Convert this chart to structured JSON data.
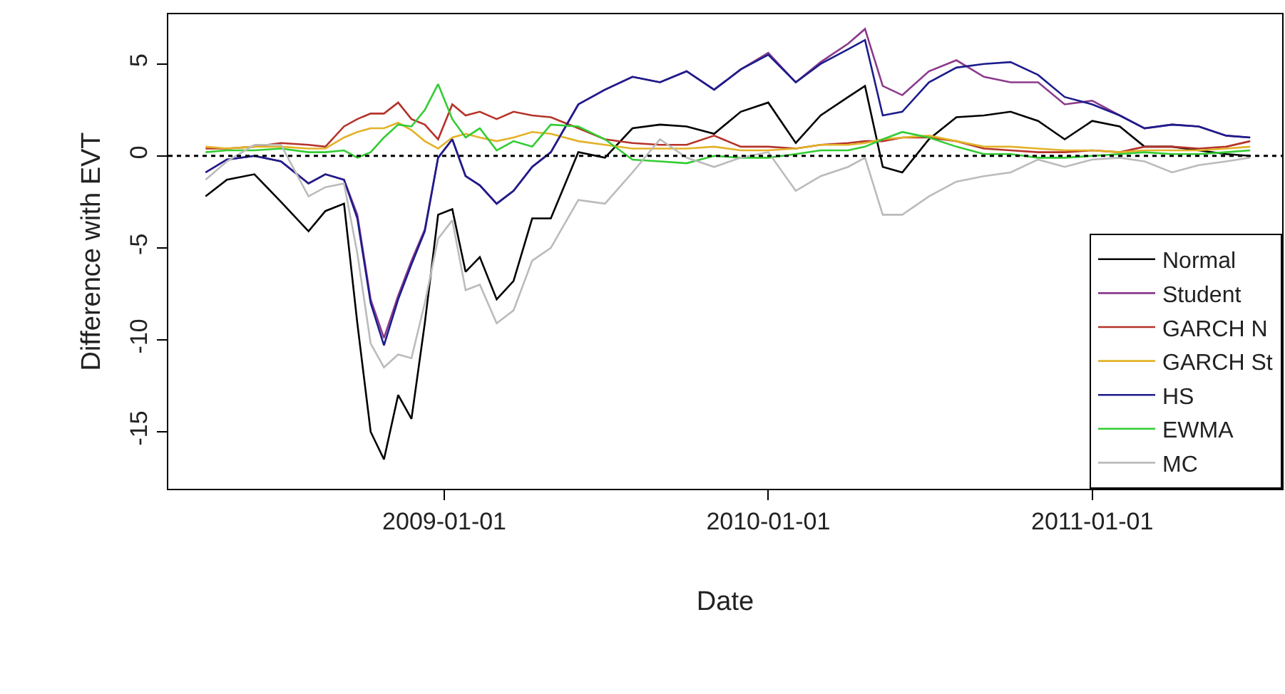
{
  "chart_data": {
    "type": "line",
    "xlabel": "Date",
    "ylabel": "Difference with EVT",
    "x": [
      "2008-04-07",
      "2008-05-01",
      "2008-06-01",
      "2008-07-01",
      "2008-08-01",
      "2008-08-20",
      "2008-09-10",
      "2008-09-25",
      "2008-10-10",
      "2008-10-25",
      "2008-11-10",
      "2008-11-25",
      "2008-12-10",
      "2008-12-25",
      "2009-01-10",
      "2009-01-25",
      "2009-02-10",
      "2009-03-01",
      "2009-03-20",
      "2009-04-10",
      "2009-05-01",
      "2009-06-01",
      "2009-07-01",
      "2009-08-01",
      "2009-09-01",
      "2009-10-01",
      "2009-11-01",
      "2009-12-01",
      "2010-01-01",
      "2010-02-01",
      "2010-03-01",
      "2010-04-01",
      "2010-04-20",
      "2010-05-10",
      "2010-06-01",
      "2010-07-01",
      "2010-08-01",
      "2010-09-01",
      "2010-10-01",
      "2010-11-01",
      "2010-12-01",
      "2011-01-01",
      "2011-02-01",
      "2011-03-01",
      "2011-04-01",
      "2011-05-01",
      "2011-06-01",
      "2011-06-28"
    ],
    "series": [
      {
        "name": "Normal",
        "color": "#000000",
        "values": [
          -2.2,
          -1.3,
          -1.0,
          -2.5,
          -4.1,
          -3.0,
          -2.6,
          -9.1,
          -15.0,
          -16.5,
          -13.0,
          -14.3,
          -9.1,
          -3.2,
          -2.9,
          -6.3,
          -5.5,
          -7.8,
          -6.8,
          -3.4,
          -3.4,
          0.2,
          -0.1,
          1.5,
          1.7,
          1.6,
          1.2,
          2.4,
          2.9,
          0.7,
          2.2,
          3.2,
          3.8,
          -0.6,
          -0.9,
          0.9,
          2.1,
          2.2,
          2.4,
          1.9,
          0.9,
          1.9,
          1.6,
          0.5,
          0.5,
          0.3,
          0.1,
          0.0
        ]
      },
      {
        "name": "Student",
        "color": "#8b3a8b",
        "values": [
          -0.9,
          -0.2,
          0.0,
          -0.3,
          -1.5,
          -1.0,
          -1.3,
          -3.2,
          -7.8,
          -9.9,
          -7.6,
          -5.7,
          -4.0,
          -0.1,
          0.9,
          -1.1,
          -1.6,
          -2.6,
          -1.9,
          -0.6,
          0.2,
          2.8,
          3.6,
          4.3,
          4.0,
          4.6,
          3.6,
          4.7,
          5.6,
          4.0,
          5.1,
          6.1,
          6.9,
          3.8,
          3.3,
          4.6,
          5.2,
          4.3,
          4.0,
          4.0,
          2.8,
          3.0,
          2.2,
          1.5,
          1.7,
          1.6,
          1.1,
          1.0
        ]
      },
      {
        "name": "GARCH N",
        "color": "#b5332a",
        "values": [
          0.4,
          0.4,
          0.5,
          0.7,
          0.6,
          0.5,
          1.6,
          2.0,
          2.3,
          2.3,
          2.9,
          2.0,
          1.7,
          0.9,
          2.8,
          2.2,
          2.4,
          2.0,
          2.4,
          2.2,
          2.1,
          1.5,
          0.9,
          0.7,
          0.6,
          0.6,
          1.1,
          0.5,
          0.5,
          0.4,
          0.6,
          0.7,
          0.8,
          0.8,
          1.0,
          1.0,
          0.8,
          0.4,
          0.3,
          0.2,
          0.2,
          0.3,
          0.2,
          0.5,
          0.5,
          0.4,
          0.5,
          0.8
        ]
      },
      {
        "name": "GARCH St",
        "color": "#e3b227",
        "values": [
          0.5,
          0.4,
          0.5,
          0.5,
          0.4,
          0.4,
          1.0,
          1.3,
          1.5,
          1.5,
          1.8,
          1.4,
          0.8,
          0.4,
          1.0,
          1.2,
          1.0,
          0.8,
          1.0,
          1.3,
          1.2,
          0.8,
          0.6,
          0.4,
          0.4,
          0.4,
          0.5,
          0.3,
          0.3,
          0.4,
          0.6,
          0.6,
          0.7,
          0.9,
          1.0,
          1.1,
          0.8,
          0.5,
          0.5,
          0.4,
          0.3,
          0.3,
          0.2,
          0.3,
          0.3,
          0.3,
          0.4,
          0.5
        ]
      },
      {
        "name": "HS",
        "color": "#1c1c8c",
        "values": [
          -0.9,
          -0.2,
          0.0,
          -0.3,
          -1.5,
          -1.0,
          -1.3,
          -3.4,
          -8.0,
          -10.3,
          -7.8,
          -5.9,
          -4.1,
          -0.1,
          0.9,
          -1.1,
          -1.6,
          -2.6,
          -1.9,
          -0.6,
          0.2,
          2.8,
          3.6,
          4.3,
          4.0,
          4.6,
          3.6,
          4.7,
          5.5,
          4.0,
          5.0,
          5.8,
          6.3,
          2.2,
          2.4,
          4.0,
          4.8,
          5.0,
          5.1,
          4.4,
          3.2,
          2.8,
          2.2,
          1.5,
          1.7,
          1.6,
          1.1,
          1.0
        ]
      },
      {
        "name": "EWMA",
        "color": "#33cc33",
        "values": [
          0.2,
          0.3,
          0.3,
          0.4,
          0.2,
          0.2,
          0.3,
          -0.1,
          0.2,
          1.0,
          1.7,
          1.6,
          2.5,
          3.9,
          2.0,
          1.0,
          1.5,
          0.3,
          0.8,
          0.5,
          1.7,
          1.6,
          0.9,
          -0.2,
          -0.3,
          -0.4,
          0.0,
          -0.1,
          -0.1,
          0.1,
          0.3,
          0.3,
          0.5,
          0.9,
          1.3,
          1.0,
          0.5,
          0.1,
          0.1,
          -0.1,
          -0.1,
          0.0,
          0.1,
          0.2,
          0.1,
          0.1,
          0.2,
          0.3
        ]
      },
      {
        "name": "MC",
        "color": "#bbbbbb",
        "values": [
          -1.3,
          -0.3,
          0.6,
          0.6,
          -2.2,
          -1.7,
          -1.5,
          -5.3,
          -10.2,
          -11.5,
          -10.8,
          -11.0,
          -8.0,
          -4.5,
          -3.5,
          -7.3,
          -7.0,
          -9.1,
          -8.4,
          -5.7,
          -5.0,
          -2.4,
          -2.6,
          -0.9,
          0.9,
          -0.1,
          -0.6,
          -0.1,
          0.2,
          -1.9,
          -1.1,
          -0.6,
          -0.1,
          -3.2,
          -3.2,
          -2.2,
          -1.4,
          -1.1,
          -0.9,
          -0.2,
          -0.6,
          -0.2,
          -0.1,
          -0.3,
          -0.9,
          -0.5,
          -0.3,
          -0.1
        ]
      }
    ],
    "xlim": [
      "2008-02-25",
      "2011-08-03"
    ],
    "xticks": [
      "2009-01-01",
      "2010-01-01",
      "2011-01-01"
    ],
    "ylim": [
      -18.1,
      7.7
    ],
    "yticks": [
      -15,
      -10,
      -5,
      0,
      5
    ],
    "ref_lines": [
      {
        "axis": "y",
        "value": 0,
        "color": "#000000",
        "line_style": "dotted"
      }
    ],
    "legend": "bottom right",
    "line_style": "solid",
    "marker": "none"
  }
}
